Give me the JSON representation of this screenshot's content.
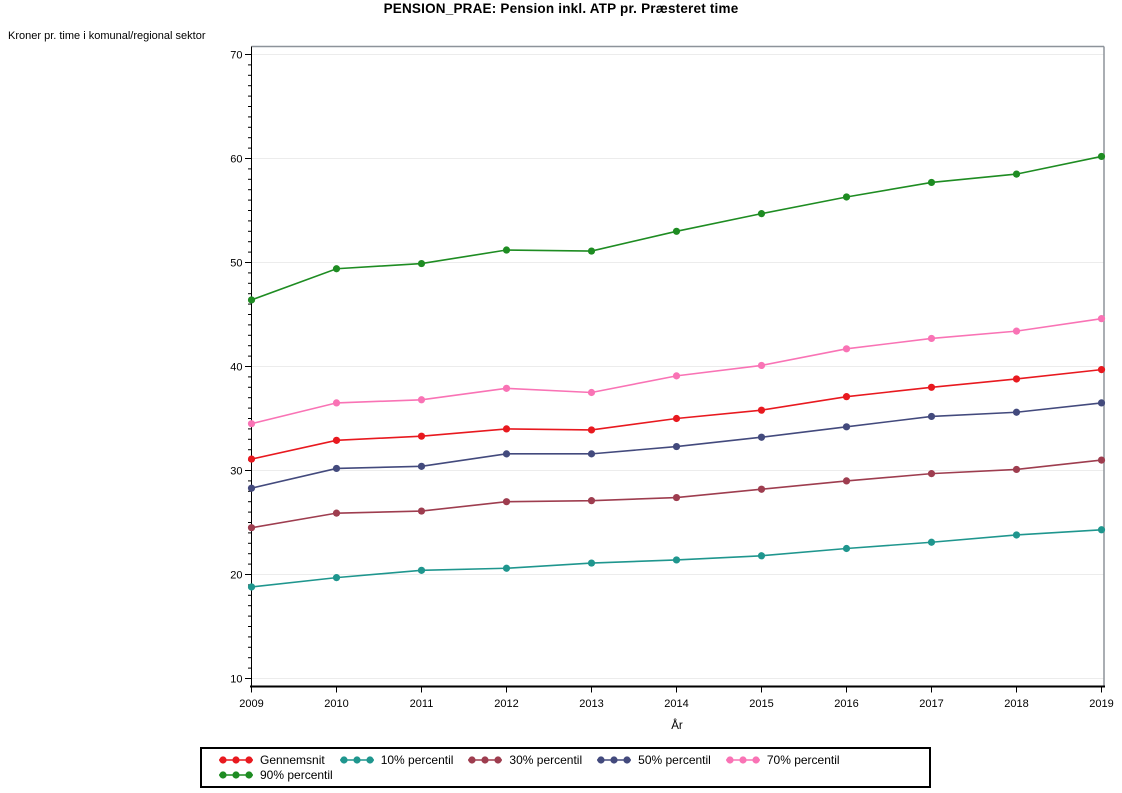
{
  "title": "PENSION_PRAE: Pension inkl. ATP pr. Præsteret time",
  "chart_data": {
    "type": "line",
    "title": "PENSION_PRAE: Pension inkl. ATP pr. Præsteret time",
    "ylabel": "Kroner pr. time i komunal/regional sektor",
    "xlabel": "År",
    "x": [
      2009,
      2010,
      2011,
      2012,
      2013,
      2014,
      2015,
      2016,
      2017,
      2018,
      2019
    ],
    "series": [
      {
        "name": "Gennemsnit",
        "color": "#e8191f",
        "values": [
          31.1,
          32.9,
          33.3,
          34.0,
          33.9,
          35.0,
          35.8,
          37.1,
          38.0,
          38.8,
          39.7
        ]
      },
      {
        "name": "10% percentil",
        "color": "#1f968e",
        "values": [
          18.8,
          19.7,
          20.4,
          20.6,
          21.1,
          21.4,
          21.8,
          22.5,
          23.1,
          23.8,
          24.3
        ]
      },
      {
        "name": "30% percentil",
        "color": "#9e3d4f",
        "values": [
          24.5,
          25.9,
          26.1,
          27.0,
          27.1,
          27.4,
          28.2,
          29.0,
          29.7,
          30.1,
          31.0
        ]
      },
      {
        "name": "50% percentil",
        "color": "#434a7d",
        "values": [
          28.3,
          30.2,
          30.4,
          31.6,
          31.6,
          32.3,
          33.2,
          34.2,
          35.2,
          35.6,
          36.5
        ]
      },
      {
        "name": "70% percentil",
        "color": "#f973b5",
        "values": [
          34.5,
          36.5,
          36.8,
          37.9,
          37.5,
          39.1,
          40.1,
          41.7,
          42.7,
          43.4,
          44.6
        ]
      },
      {
        "name": "90% percentil",
        "color": "#1e8c22",
        "values": [
          46.4,
          49.4,
          49.9,
          51.2,
          51.1,
          53.0,
          54.7,
          56.3,
          57.7,
          58.5,
          60.2
        ]
      }
    ],
    "ylim": [
      10,
      70
    ],
    "yticks": [
      10,
      20,
      30,
      40,
      50,
      60,
      70
    ],
    "y_minor_step": 1,
    "grid": "horizontal-only",
    "legend_position": "bottom",
    "legend_rows": [
      [
        "Gennemsnit",
        "10% percentil",
        "30% percentil",
        "50% percentil",
        "70% percentil"
      ],
      [
        "90% percentil"
      ]
    ],
    "style_colors": {
      "gridline": "#ececec",
      "frame_gray": "#8d939a",
      "axis": "#000000",
      "background": "#ffffff"
    }
  }
}
